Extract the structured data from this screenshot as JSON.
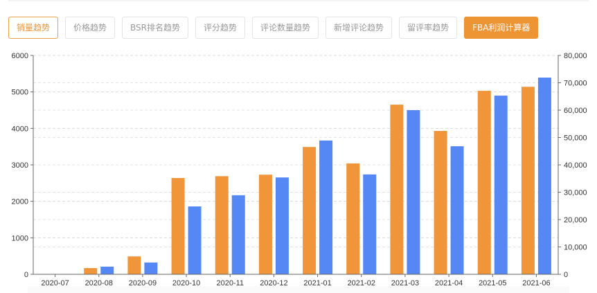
{
  "tabs": [
    {
      "label": "销量趋势",
      "state": "active"
    },
    {
      "label": "价格趋势",
      "state": "normal"
    },
    {
      "label": "BSR排名趋势",
      "state": "normal"
    },
    {
      "label": "评分趋势",
      "state": "normal"
    },
    {
      "label": "评论数量趋势",
      "state": "normal"
    },
    {
      "label": "新增评论趋势",
      "state": "normal"
    },
    {
      "label": "留评率趋势",
      "state": "normal"
    },
    {
      "label": "FBA利润计算器",
      "state": "primary"
    }
  ],
  "colors": {
    "series_left": "#f0953a",
    "series_right": "#5588f5",
    "accent": "#ed9535"
  },
  "chart_data": {
    "type": "bar",
    "title": "",
    "categories": [
      "2020-07",
      "2020-08",
      "2020-09",
      "2020-10",
      "2020-11",
      "2020-12",
      "2021-01",
      "2021-02",
      "2021-03",
      "2021-04",
      "2021-05",
      "2021-06"
    ],
    "series": [
      {
        "name": "",
        "axis": "left",
        "color": "#f0953a",
        "values": [
          0,
          170,
          490,
          2640,
          2690,
          2730,
          3490,
          3040,
          4650,
          3930,
          5030,
          5140
        ]
      },
      {
        "name": "",
        "axis": "right",
        "color": "#5588f5",
        "values": [
          0,
          2800,
          4300,
          24800,
          28900,
          35400,
          48900,
          36500,
          60000,
          46800,
          65300,
          71900
        ]
      }
    ],
    "y_left": {
      "min": 0,
      "max": 6000,
      "ticks": [
        "0",
        "1000",
        "2000",
        "3000",
        "4000",
        "5000",
        "6000"
      ]
    },
    "y_right": {
      "min": 0,
      "max": 80000,
      "ticks": [
        "0",
        "10,000",
        "20,000",
        "30,000",
        "40,000",
        "50,000",
        "60,000",
        "70,000",
        "80,000"
      ]
    },
    "xlabel": "",
    "ylabel": "",
    "grid": true,
    "legend": "none"
  }
}
